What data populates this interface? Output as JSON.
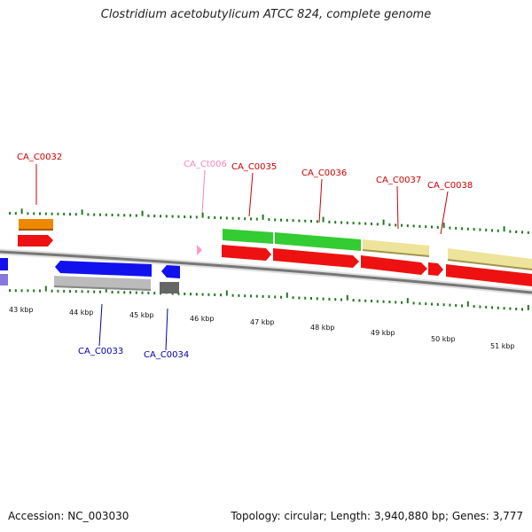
{
  "title": "Clostridium acetobutylicum ATCC 824, complete genome",
  "accession_text": "Accession: NC_003030",
  "summary_text": "Topology: circular; Length: 3,940,880 bp; Genes: 3,777",
  "colors": {
    "backbone": "#777777",
    "cds_red": "#ee1111",
    "cds_blue": "#1111ee",
    "gene_green": "#33cc33",
    "gene_orange": "#ee8800",
    "gene_khaki": "#eee39a",
    "gene_grey": "#bbbbbb",
    "gene_darkgrey": "#666666",
    "gene_lavender": "#8877dd",
    "trna_pink": "#ff99cc",
    "tick_green": "#227722",
    "label_red": "#cc0000",
    "label_blue": "#0000aa",
    "label_pink": "#ee88bb"
  },
  "kbp_labels": [
    "43 kbp",
    "44 kbp",
    "45 kbp",
    "46 kbp",
    "47 kbp",
    "48 kbp",
    "49 kbp",
    "50 kbp",
    "51 kbp"
  ],
  "genes": [
    {
      "label": "CA_C0032",
      "strand": "forward",
      "type": "cds",
      "start_kbp": 43.15,
      "end_kbp": 43.75,
      "color": "label_red"
    },
    {
      "label": "CA_Ct006",
      "strand": "forward",
      "type": "trna",
      "start_kbp": 46.05,
      "end_kbp": 46.15,
      "color": "label_pink"
    },
    {
      "label": "CA_C0035",
      "strand": "forward",
      "type": "cds",
      "start_kbp": 46.55,
      "end_kbp": 47.35,
      "color": "label_red"
    },
    {
      "label": "CA_C0036",
      "strand": "forward",
      "type": "cds",
      "start_kbp": 47.4,
      "end_kbp": 48.85,
      "color": "label_red"
    },
    {
      "label": "CA_C0037",
      "strand": "forward",
      "type": "cds",
      "start_kbp": 48.9,
      "end_kbp": 50.0,
      "color": "label_red"
    },
    {
      "label": "CA_C0038",
      "strand": "forward",
      "type": "cds",
      "start_kbp": 50.1,
      "end_kbp": 50.35,
      "color": "label_red"
    },
    {
      "label": "CA_C0033",
      "strand": "reverse",
      "type": "cds",
      "start_kbp": 43.85,
      "end_kbp": 45.4,
      "color": "label_blue"
    },
    {
      "label": "CA_C0034",
      "strand": "reverse",
      "type": "cds",
      "start_kbp": 45.55,
      "end_kbp": 45.85,
      "color": "label_blue"
    }
  ]
}
